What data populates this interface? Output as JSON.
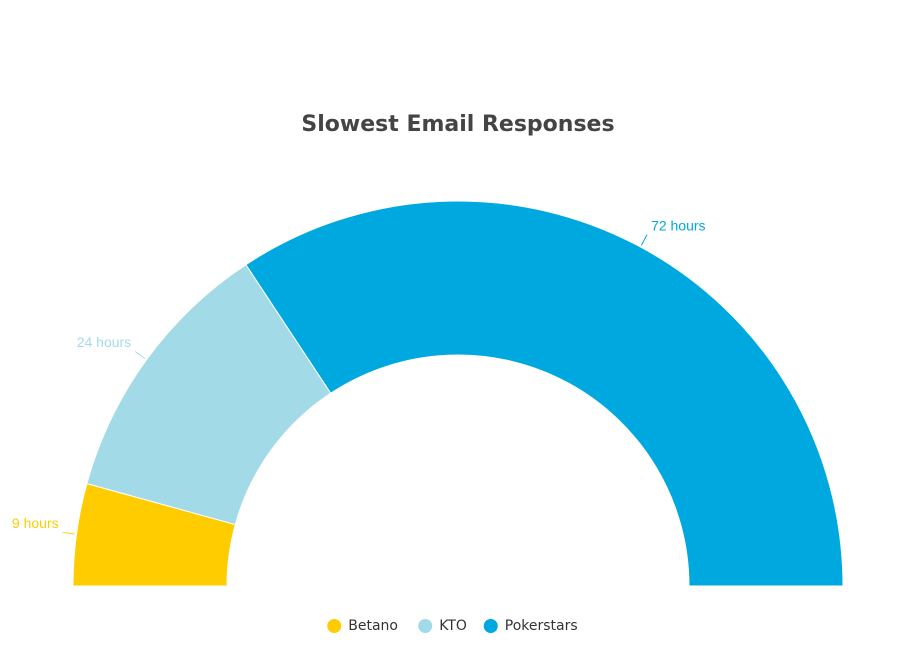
{
  "chart_data": {
    "type": "semi-donut",
    "title": "Slowest Email Responses",
    "categories": [
      "Betano",
      "KTO",
      "Pokerstars"
    ],
    "values": [
      9,
      24,
      72
    ],
    "value_labels": [
      "9 hours",
      "24 hours",
      "72 hours"
    ],
    "colors": [
      "#FFCC00",
      "#A3DAE8",
      "#00A8E0"
    ]
  }
}
